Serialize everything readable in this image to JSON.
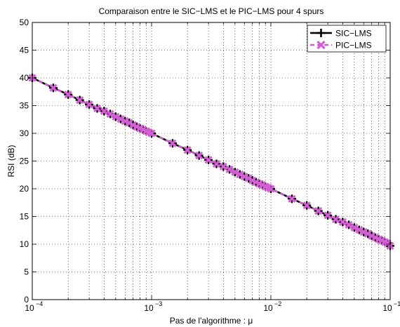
{
  "chart_data": {
    "type": "line",
    "title": "Comparaison entre le SIC−LMS et le PIC−LMS pour 4 spurs",
    "xlabel": "Pas de l'algorithme : μ",
    "ylabel": "RSI (dB)",
    "xscale": "log",
    "xlim": [
      0.0001,
      0.1
    ],
    "ylim": [
      0,
      50
    ],
    "x_ticks": [
      {
        "value": 0.0001,
        "base": "10",
        "exp": "−4"
      },
      {
        "value": 0.001,
        "base": "10",
        "exp": "−3"
      },
      {
        "value": 0.01,
        "base": "10",
        "exp": "−2"
      },
      {
        "value": 0.1,
        "base": "10",
        "exp": "−1"
      }
    ],
    "y_ticks": [
      "0",
      "5",
      "10",
      "15",
      "20",
      "25",
      "30",
      "35",
      "40",
      "45",
      "50"
    ],
    "grid": "dotted, major and minor",
    "legend_position": "top-right",
    "x": [
      0.0001,
      0.00015,
      0.0002,
      0.00025,
      0.0003,
      0.00035,
      0.0004,
      0.00045,
      0.0005,
      0.00055,
      0.0006,
      0.00065,
      0.0007,
      0.00075,
      0.0008,
      0.00085,
      0.0009,
      0.00095,
      0.001,
      0.0015,
      0.002,
      0.0025,
      0.003,
      0.0035,
      0.004,
      0.0045,
      0.005,
      0.0055,
      0.006,
      0.0065,
      0.007,
      0.0075,
      0.008,
      0.0085,
      0.009,
      0.0095,
      0.01,
      0.015,
      0.02,
      0.025,
      0.03,
      0.035,
      0.04,
      0.045,
      0.05,
      0.055,
      0.06,
      0.065,
      0.07,
      0.075,
      0.08,
      0.085,
      0.09,
      0.095,
      0.1
    ],
    "series": [
      {
        "name": "SIC−LMS",
        "color": "#000000",
        "marker": "plus",
        "line": "solid",
        "values": [
          40.0,
          38.2,
          37.0,
          36.0,
          35.2,
          34.5,
          34.0,
          33.5,
          33.0,
          32.6,
          32.2,
          31.9,
          31.5,
          31.2,
          30.9,
          30.7,
          30.4,
          30.2,
          30.0,
          28.2,
          27.0,
          26.0,
          25.2,
          24.5,
          24.0,
          23.5,
          23.0,
          22.6,
          22.2,
          21.9,
          21.5,
          21.2,
          20.9,
          20.7,
          20.4,
          20.2,
          20.0,
          18.2,
          17.0,
          16.0,
          15.2,
          14.5,
          14.0,
          13.5,
          13.0,
          12.6,
          12.2,
          11.9,
          11.5,
          11.2,
          10.9,
          10.7,
          10.4,
          10.2,
          9.7
        ]
      },
      {
        "name": "PIC−LMS",
        "color": "#d45fd4",
        "marker": "x",
        "line": "dashed",
        "values": [
          40.0,
          38.2,
          37.0,
          36.0,
          35.2,
          34.5,
          34.0,
          33.5,
          33.0,
          32.6,
          32.2,
          31.9,
          31.5,
          31.2,
          30.9,
          30.7,
          30.4,
          30.2,
          30.0,
          28.2,
          27.0,
          26.0,
          25.2,
          24.5,
          24.0,
          23.5,
          23.0,
          22.6,
          22.2,
          21.9,
          21.5,
          21.2,
          20.9,
          20.7,
          20.4,
          20.2,
          20.0,
          18.2,
          17.0,
          16.0,
          15.2,
          14.5,
          14.0,
          13.5,
          13.0,
          12.6,
          12.2,
          11.9,
          11.5,
          11.2,
          10.9,
          10.7,
          10.4,
          10.2,
          9.7
        ]
      }
    ]
  }
}
